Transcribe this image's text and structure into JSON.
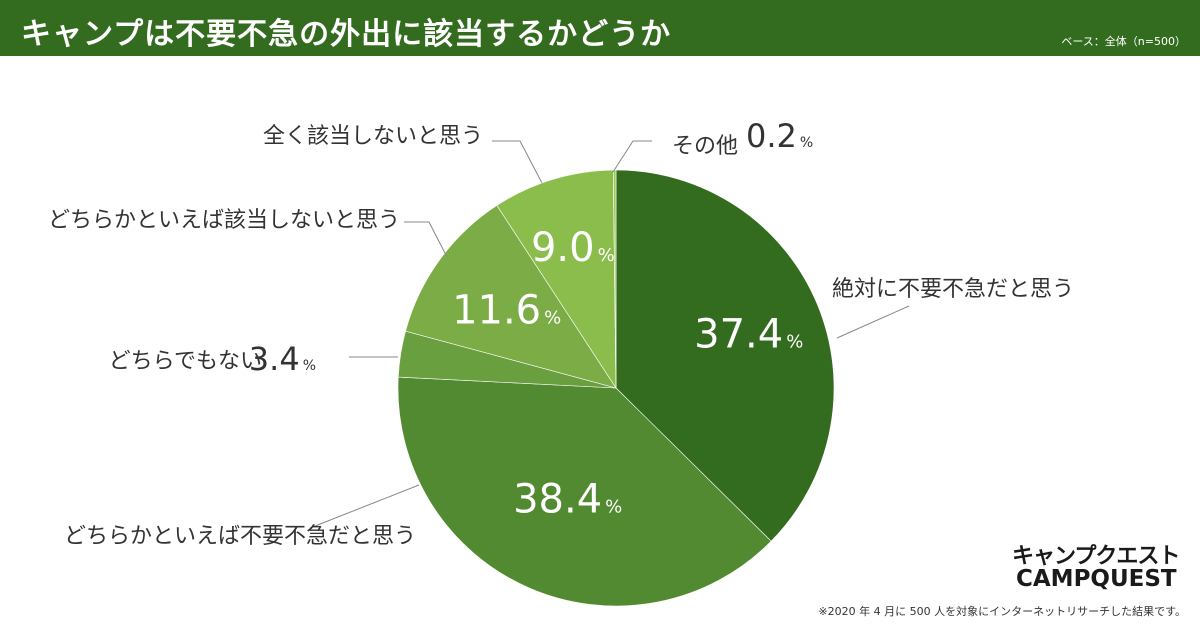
{
  "header": {
    "title": "キャンプは不要不急の外出に該当するかどうか",
    "base": "ベース：全体（n=500）"
  },
  "colors": {
    "header_bg": "#336b1f",
    "slice_colors": [
      "#336b1f",
      "#528a31",
      "#6a9f3f",
      "#7bac46",
      "#8bbd4d",
      "#9ccb5c"
    ]
  },
  "chart_data": {
    "type": "pie",
    "title": "キャンプは不要不急の外出に該当するかどうか",
    "start": "12 o'clock",
    "direction": "clockwise",
    "slices": [
      {
        "label": "絶対に不要不急だと思う",
        "value": 37.4,
        "display": "37.4",
        "unit": "%",
        "color": "#336b1f"
      },
      {
        "label": "どちらかといえば不要不急だと思う",
        "value": 38.4,
        "display": "38.4",
        "unit": "%",
        "color": "#528a31"
      },
      {
        "label": "どちらでもない",
        "value": 3.4,
        "display": "3.4",
        "unit": "%",
        "color": "#6a9f3f"
      },
      {
        "label": "どちらかといえば該当しないと思う",
        "value": 11.6,
        "display": "11.6",
        "unit": "%",
        "color": "#7bac46"
      },
      {
        "label": "全く該当しないと思う",
        "value": 9.0,
        "display": "9.0",
        "unit": "%",
        "color": "#8bbd4d"
      },
      {
        "label": "その他",
        "value": 0.2,
        "display": "0.2",
        "unit": "%",
        "color": "#9ccb5c"
      }
    ]
  },
  "logo": {
    "japanese": "キャンプクエスト",
    "english": "CAMPQUEST"
  },
  "footnote": "※2020 年 4 月に 500 人を対象にインターネットリサーチした結果です。"
}
